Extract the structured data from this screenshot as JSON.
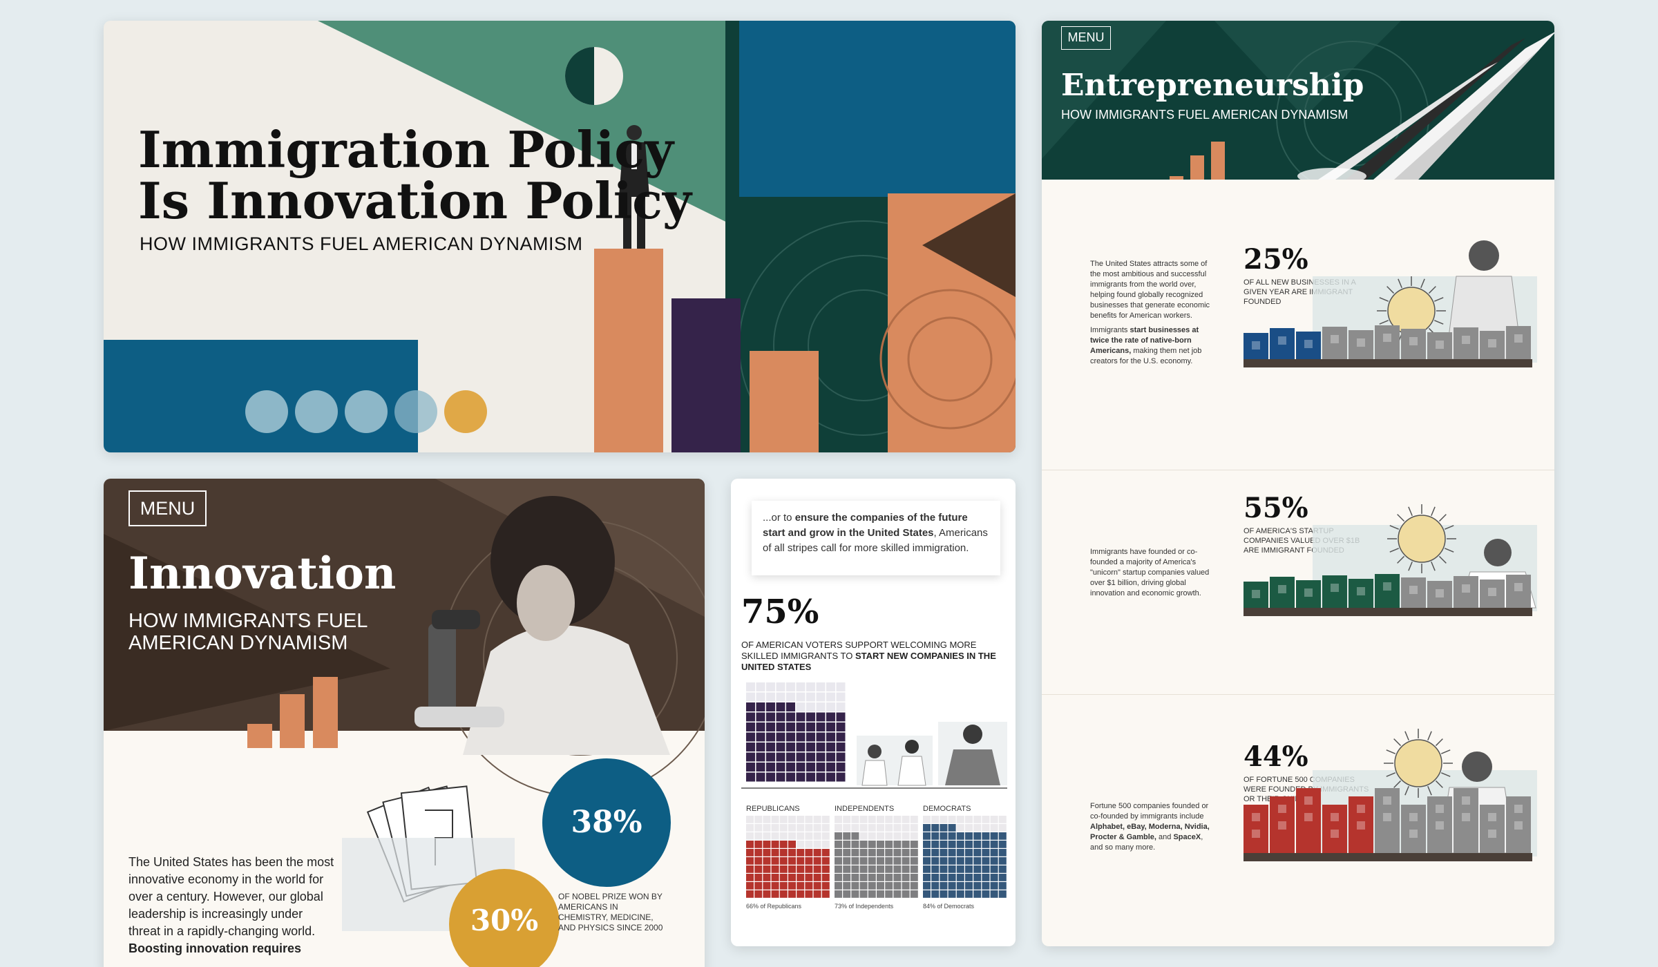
{
  "hero": {
    "title_line1": "Immigration Policy",
    "title_line2": "Is Innovation Policy",
    "subtitle": "HOW IMMIGRANTS FUEL AMERICAN DYNAMISM"
  },
  "innovation": {
    "menu_label": "MENU",
    "title": "Innovation",
    "subtitle": "HOW IMMIGRANTS FUEL AMERICAN DYNAMISM",
    "body": "The United States has been the most innovative economy in the world for over a century. However, our global leadership is increasingly under threat in a rapidly-changing world.",
    "body_bold": "Boosting innovation requires",
    "stat_a": "38%",
    "stat_b": "30%",
    "nobel_caption": "OF NOBEL PRIZE WON BY AMERICANS IN CHEMISTRY, MEDICINE, AND PHYSICS SINCE 2000"
  },
  "survey": {
    "quote_pre": "...or to ",
    "quote_bold": "ensure the companies of the future start and grow in the United States",
    "quote_post": ", Americans of all stripes call for more skilled immigration.",
    "big_pct": "75%",
    "desc_pre": "OF AMERICAN VOTERS SUPPORT WELCOMING MORE SKILLED IMMIGRANTS TO ",
    "desc_bold": "START NEW COMPANIES IN THE UNITED STATES",
    "parties": [
      {
        "label": "REPUBLICANS",
        "note": "66% of Republicans",
        "pct": 66,
        "color": "#b5342d"
      },
      {
        "label": "INDEPENDENTS",
        "note": "73% of Independents",
        "pct": 73,
        "color": "#7e7e80"
      },
      {
        "label": "DEMOCRATS",
        "note": "84% of Democrats",
        "pct": 84,
        "color": "#35587b"
      }
    ]
  },
  "entre": {
    "menu_label": "MENU",
    "title": "Entrepreneurship",
    "subtitle": "HOW IMMIGRANTS FUEL AMERICAN DYNAMISM",
    "sections": [
      {
        "desc_a": "The United States attracts some of the most ambitious and successful immigrants from the world over, helping found globally recognized businesses that generate economic benefits for American workers.",
        "desc_b_pre": "Immigrants ",
        "desc_b_bold": "start businesses at twice the rate of native-born Americans,",
        "desc_b_post": " making them net job creators for the U.S. economy.",
        "pct": "25%",
        "label": "OF ALL NEW BUSINESSES IN A GIVEN YEAR ARE IMMIGRANT FOUNDED",
        "color": "#1a4e86"
      },
      {
        "desc_a": "Immigrants have founded or co-founded a majority of America's \"unicorn\" startup companies valued over $1 billion, driving global innovation and economic growth.",
        "pct": "55%",
        "label": "OF AMERICA'S STARTUP COMPANIES VALUED OVER $1B ARE IMMIGRANT FOUNDED",
        "color": "#1c5a43"
      },
      {
        "desc_a": "Fortune 500 companies founded or co-founded by immigrants include ",
        "desc_bold": "Alphabet, eBay, Moderna, Nvidia, Procter & Gamble,",
        "desc_mid": " and ",
        "desc_bold2": "SpaceX",
        "desc_post": ", and so many more.",
        "pct": "44%",
        "label": "OF FORTUNE 500 COMPANIES WERE FOUNDED BY IMMIGRANTS OR THEIR CHILDREN",
        "color": "#b5342d"
      }
    ]
  }
}
